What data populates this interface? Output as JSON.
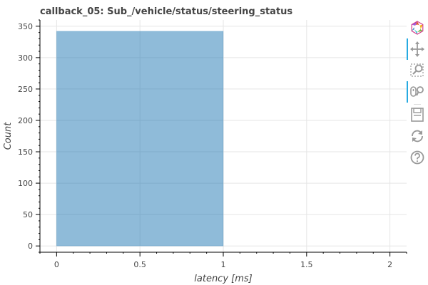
{
  "chart_data": {
    "type": "bar",
    "title": "callback_05: Sub_/vehicle/status/steering_status",
    "xlabel": "latency [ms]",
    "ylabel": "Count",
    "xlim": [
      -0.1,
      2.1
    ],
    "ylim": [
      -10,
      360
    ],
    "xticks": [
      0,
      0.5,
      1,
      1.5,
      2
    ],
    "xtick_labels": [
      "0",
      "0.5",
      "1",
      "1.5",
      "2"
    ],
    "yticks": [
      0,
      50,
      100,
      150,
      200,
      250,
      300,
      350
    ],
    "ytick_labels": [
      "0",
      "50",
      "100",
      "150",
      "200",
      "250",
      "300",
      "350"
    ],
    "bins": [
      {
        "left": 0,
        "right": 1,
        "value": 342
      }
    ],
    "grid": true,
    "bar_color": "#1f77b4"
  },
  "toolbar": {
    "tools": [
      {
        "name": "bokeh-logo-icon"
      },
      {
        "name": "pan-tool-icon"
      },
      {
        "name": "box-zoom-tool-icon"
      },
      {
        "name": "wheel-zoom-tool-icon"
      },
      {
        "name": "save-tool-icon"
      },
      {
        "name": "reset-tool-icon"
      },
      {
        "name": "help-tool-icon"
      }
    ]
  }
}
